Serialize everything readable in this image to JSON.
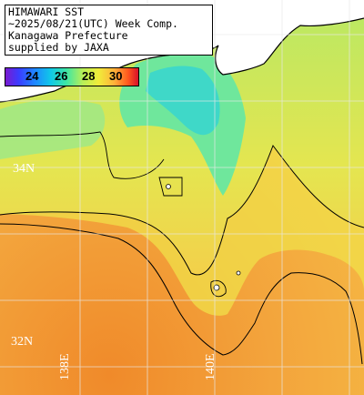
{
  "title_lines": [
    "HIMAWARI SST",
    "~2025/08/21(UTC) Week Comp.",
    "Kanagawa Prefecture",
    "supplied by JAXA"
  ],
  "color_scale": {
    "ticks": [
      "24",
      "26",
      "28",
      "30"
    ],
    "colors": [
      "#7a1bd0",
      "#3a3cff",
      "#1f86ff",
      "#10c8e8",
      "#3fe6a4",
      "#b6ef58",
      "#f0ec3a",
      "#ffb13a",
      "#ff5a1e",
      "#d8102a"
    ]
  },
  "lat_labels": [
    "34N",
    "32N"
  ],
  "lon_labels": [
    "138E",
    "140E"
  ],
  "colors": {
    "warm_sea": "#f2a23c",
    "mid_sea": "#d6e25a",
    "cool_sea": "#56e0a8",
    "land": "#ffffff",
    "grid": "#e8e8e8"
  }
}
